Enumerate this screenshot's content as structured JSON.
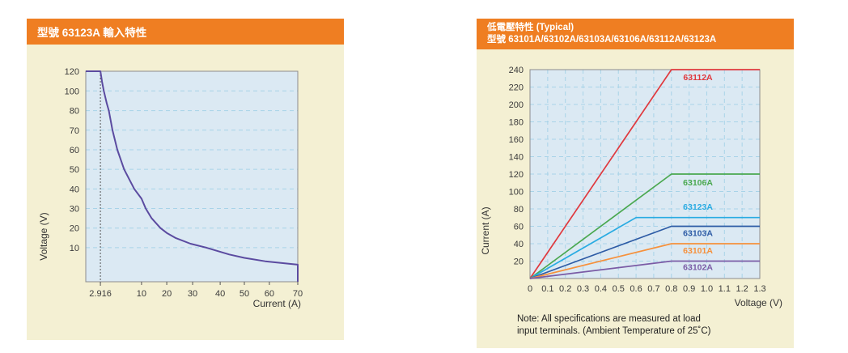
{
  "colors": {
    "header_bg": "#ef7e22",
    "header_text": "#ffffff",
    "panel_bg": "#f4f0d3",
    "plot_bg": "#dbe9f3",
    "grid": "#a8d3e8",
    "plot_border": "#8c8c8c",
    "tick_text": "#3b3b3b",
    "reference_line": "#555555"
  },
  "panels": {
    "left": {
      "title": "型號 63123A 輸入特性"
    },
    "right": {
      "title_line1": "低電壓特性 (Typical)",
      "title_line2": "型號 63101A/63102A/63103A/63106A/63112A/63123A",
      "note_line1": "Note: All specifications are measured at load",
      "note_line2": "input terminals. (Ambient Temperature of 25˚C)"
    }
  },
  "chart_data": [
    {
      "type": "line",
      "title": "型號 63123A 輸入特性",
      "xlabel": "Current (A)",
      "ylabel": "Voltage (V)",
      "x_tick_labels": [
        "2.916",
        "10",
        "20",
        "30",
        "40",
        "50",
        "60",
        "70"
      ],
      "x_tick_values": [
        2.916,
        10,
        20,
        30,
        40,
        50,
        60,
        70
      ],
      "y_tick_values": [
        120,
        100,
        80,
        70,
        60,
        50,
        40,
        30,
        20,
        10
      ],
      "x_anchors": [
        [
          0,
          0
        ],
        [
          2.916,
          0.069
        ],
        [
          10,
          0.263
        ],
        [
          20,
          0.382
        ],
        [
          30,
          0.504
        ],
        [
          40,
          0.634
        ],
        [
          50,
          0.748
        ],
        [
          60,
          0.866
        ],
        [
          70,
          1.0
        ]
      ],
      "y_anchors": [
        [
          0,
          1.0
        ],
        [
          10,
          0.838
        ],
        [
          20,
          0.745
        ],
        [
          30,
          0.652
        ],
        [
          40,
          0.559
        ],
        [
          50,
          0.466
        ],
        [
          60,
          0.373
        ],
        [
          70,
          0.28
        ],
        [
          80,
          0.187
        ],
        [
          100,
          0.0935
        ],
        [
          120,
          0
        ]
      ],
      "reference_line_x": 2.916,
      "grid_vertical": false,
      "series": [
        {
          "name": "63123A input characteristic",
          "color": "#5b4ba0",
          "points": [
            [
              0,
              120
            ],
            [
              2.916,
              120
            ],
            [
              3.2,
              109.4
            ],
            [
              3.5,
              100
            ],
            [
              4,
              87.5
            ],
            [
              4.375,
              80
            ],
            [
              5,
              70
            ],
            [
              5.83,
              60
            ],
            [
              7,
              50
            ],
            [
              8.75,
              40
            ],
            [
              10,
              35
            ],
            [
              11.67,
              30
            ],
            [
              14,
              25
            ],
            [
              17.5,
              20
            ],
            [
              20,
              17.5
            ],
            [
              23.33,
              15
            ],
            [
              29.17,
              12
            ],
            [
              35,
              10
            ],
            [
              43.75,
              8
            ],
            [
              50,
              7
            ],
            [
              58.33,
              6
            ],
            [
              70,
              5
            ],
            [
              70,
              0
            ]
          ]
        }
      ]
    },
    {
      "type": "line",
      "title": "低電壓特性 (Typical) 型號 63101A/63102A/63103A/63106A/63112A/63123A",
      "xlabel": "Voltage (V)",
      "ylabel": "Current (A)",
      "xlim": [
        0,
        1.3
      ],
      "ylim": [
        0,
        240
      ],
      "x_tick_labels": [
        "0",
        "0.1",
        "0.2",
        "0.3",
        "0.4",
        "0.5",
        "0.6",
        "0.7",
        "0.8",
        "0.9",
        "1.0",
        "1.1",
        "1.2",
        "1.3"
      ],
      "x_tick_values": [
        0,
        0.1,
        0.2,
        0.3,
        0.4,
        0.5,
        0.6,
        0.7,
        0.8,
        0.9,
        1.0,
        1.1,
        1.2,
        1.3
      ],
      "y_tick_values": [
        20,
        40,
        60,
        80,
        100,
        120,
        140,
        160,
        180,
        200,
        220,
        240
      ],
      "grid_vertical": true,
      "series": [
        {
          "name": "63112A",
          "color": "#e0393e",
          "points": [
            [
              0,
              0
            ],
            [
              0.8,
              240
            ],
            [
              1.3,
              240
            ]
          ],
          "label_xy": [
            0.95,
            228
          ]
        },
        {
          "name": "63106A",
          "color": "#4aa850",
          "points": [
            [
              0,
              0
            ],
            [
              0.8,
              120
            ],
            [
              1.3,
              120
            ]
          ],
          "label_xy": [
            0.95,
            107
          ]
        },
        {
          "name": "63123A",
          "color": "#29abe2",
          "points": [
            [
              0,
              0
            ],
            [
              0.6,
              70
            ],
            [
              1.3,
              70
            ]
          ],
          "label_xy": [
            0.95,
            79
          ]
        },
        {
          "name": "63103A",
          "color": "#2d5ba5",
          "points": [
            [
              0,
              0
            ],
            [
              0.8,
              60
            ],
            [
              1.3,
              60
            ]
          ],
          "label_xy": [
            0.95,
            49
          ]
        },
        {
          "name": "63101A",
          "color": "#f6913c",
          "points": [
            [
              0,
              0
            ],
            [
              0.8,
              40
            ],
            [
              1.3,
              40
            ]
          ],
          "label_xy": [
            0.95,
            29
          ]
        },
        {
          "name": "63102A",
          "color": "#7a5ba5",
          "points": [
            [
              0,
              0
            ],
            [
              0.8,
              20
            ],
            [
              1.3,
              20
            ]
          ],
          "label_xy": [
            0.95,
            10
          ]
        }
      ],
      "note": "Note: All specifications are measured at load input terminals. (Ambient Temperature of 25˚C)"
    }
  ]
}
